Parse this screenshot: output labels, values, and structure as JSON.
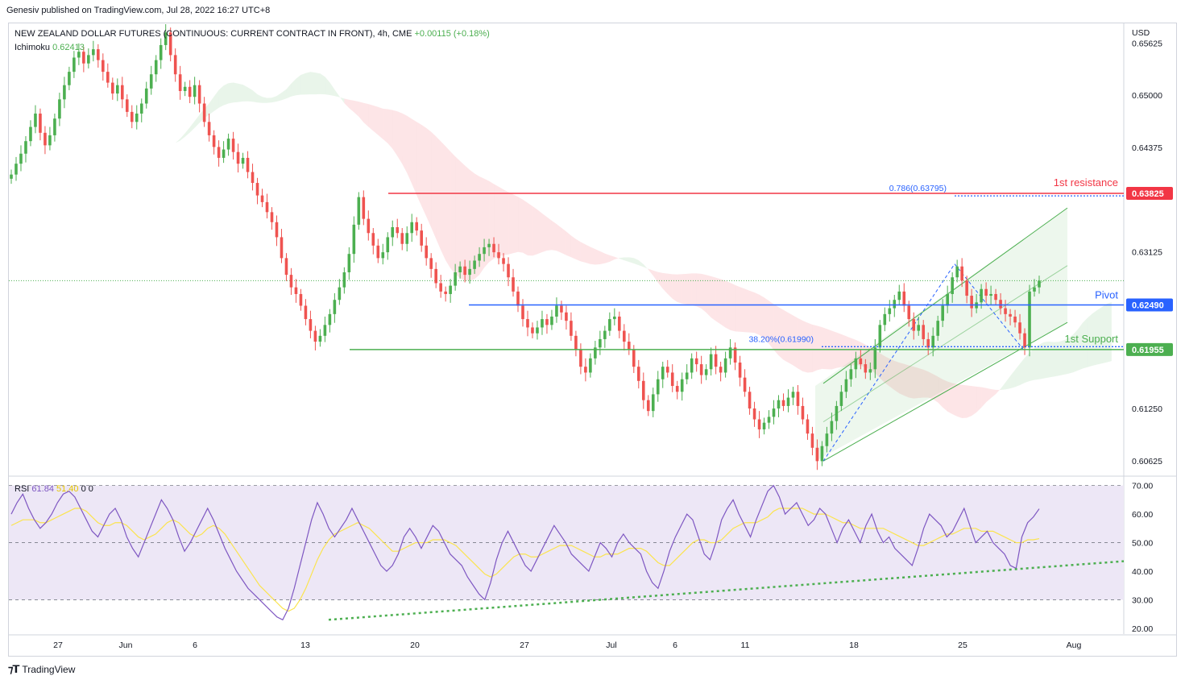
{
  "header": {
    "published": "Genesiv published on TradingView.com, Jul 28, 2022 16:27 UTC+8"
  },
  "instrument": {
    "title": "NEW ZEALAND DOLLAR FUTURES (CONTINUOUS: CURRENT CONTRACT IN FRONT), 4h, CME",
    "change": "+0.00115 (+0.18%)",
    "indicator_name": "Ichimoku",
    "indicator_value": "0.62413"
  },
  "rsi_legend": {
    "name": "RSI",
    "value": "61.84",
    "ma_value": "51.40",
    "extra1": "0",
    "extra2": "0"
  },
  "footer": {
    "brand": "TradingView"
  },
  "colors": {
    "bull": "#26a69a",
    "bull_candle": "#4caf50",
    "bear": "#ef5350",
    "resistance": "#f23645",
    "pivot": "#2962ff",
    "support": "#4caf50",
    "rsi_line": "#7e57c2",
    "rsi_ma": "#fbe44e",
    "rsi_band": "#ede7f6"
  },
  "chart_data": [
    {
      "type": "candlestick",
      "currency": "USD",
      "ylim": [
        0.6045,
        0.6585
      ],
      "price_ticks": [
        0.65625,
        0.65,
        0.64375,
        0.6375,
        0.63125,
        0.625,
        0.61875,
        0.6125,
        0.60625
      ],
      "price_tick_labels": [
        "0.65625",
        "0.65000",
        "0.64375",
        "",
        "0.63125",
        "",
        "",
        "0.61250",
        "0.60625"
      ],
      "x_labels": [
        "27",
        "Jun",
        "6",
        "13",
        "20",
        "27",
        "Jul",
        "6",
        "11",
        "18",
        "25",
        "Aug"
      ],
      "closes": [
        0.6405,
        0.6418,
        0.643,
        0.6445,
        0.6462,
        0.6478,
        0.6455,
        0.644,
        0.6452,
        0.6472,
        0.6495,
        0.6512,
        0.6528,
        0.6545,
        0.6552,
        0.6538,
        0.6548,
        0.6555,
        0.6542,
        0.6528,
        0.6515,
        0.6502,
        0.6512,
        0.6495,
        0.648,
        0.6468,
        0.6478,
        0.649,
        0.6508,
        0.6525,
        0.6542,
        0.656,
        0.6575,
        0.6548,
        0.6525,
        0.6505,
        0.651,
        0.6498,
        0.6512,
        0.649,
        0.6468,
        0.6452,
        0.6438,
        0.6425,
        0.6435,
        0.6448,
        0.6432,
        0.6418,
        0.6425,
        0.6408,
        0.6395,
        0.638,
        0.6372,
        0.636,
        0.6348,
        0.633,
        0.6305,
        0.6285,
        0.627,
        0.6262,
        0.6248,
        0.6232,
        0.6218,
        0.6205,
        0.6212,
        0.6225,
        0.6238,
        0.6255,
        0.627,
        0.6288,
        0.631,
        0.6345,
        0.6378,
        0.6352,
        0.6335,
        0.632,
        0.6305,
        0.6312,
        0.633,
        0.6342,
        0.6335,
        0.6322,
        0.6335,
        0.6348,
        0.6338,
        0.632,
        0.6305,
        0.6292,
        0.6275,
        0.6265,
        0.6262,
        0.6272,
        0.6288,
        0.6295,
        0.6285,
        0.6292,
        0.6302,
        0.631,
        0.6318,
        0.6322,
        0.6312,
        0.6305,
        0.6298,
        0.6282,
        0.6265,
        0.6248,
        0.6232,
        0.6222,
        0.6215,
        0.6222,
        0.6232,
        0.6225,
        0.6235,
        0.6248,
        0.624,
        0.623,
        0.6212,
        0.6195,
        0.6175,
        0.6168,
        0.6185,
        0.6198,
        0.6208,
        0.6218,
        0.6232,
        0.6235,
        0.6218,
        0.6205,
        0.6195,
        0.6175,
        0.6158,
        0.6135,
        0.6122,
        0.6142,
        0.616,
        0.6175,
        0.6168,
        0.6152,
        0.6145,
        0.616,
        0.6168,
        0.6185,
        0.6178,
        0.6165,
        0.6172,
        0.619,
        0.6175,
        0.6168,
        0.6185,
        0.6198,
        0.618,
        0.6162,
        0.6145,
        0.6125,
        0.6112,
        0.61,
        0.6108,
        0.6115,
        0.6125,
        0.6135,
        0.6128,
        0.6138,
        0.6145,
        0.6128,
        0.6112,
        0.6095,
        0.6078,
        0.6062,
        0.608,
        0.6095,
        0.611,
        0.6128,
        0.6145,
        0.616,
        0.6172,
        0.6185,
        0.6178,
        0.6168,
        0.6172,
        0.6198,
        0.6225,
        0.6238,
        0.6245,
        0.6255,
        0.6265,
        0.6248,
        0.6232,
        0.6218,
        0.6225,
        0.6208,
        0.6198,
        0.6212,
        0.623,
        0.6248,
        0.6262,
        0.6282,
        0.6295,
        0.6278,
        0.626,
        0.6245,
        0.6252,
        0.6268,
        0.626,
        0.6262,
        0.6255,
        0.6245,
        0.6238,
        0.6235,
        0.6228,
        0.6215,
        0.6198,
        0.6265,
        0.627,
        0.6278
      ],
      "levels": [
        {
          "name": "1st resistance",
          "price": 0.63825,
          "price_label": "0.63825"
        },
        {
          "name": "Pivot",
          "price": 0.6249,
          "price_label": "0.62490"
        },
        {
          "name": "1st Support",
          "price": 0.61955,
          "price_label": "0.61955"
        }
      ],
      "fib_labels": [
        {
          "text": "0.786(0.63795)",
          "price": 0.63795
        },
        {
          "text": "38.20%(0.61990)",
          "price": 0.6199
        }
      ]
    },
    {
      "type": "line",
      "name": "RSI",
      "ylim": [
        18,
        73
      ],
      "y_ticks": [
        70,
        60,
        50,
        40,
        30,
        20
      ],
      "y_tick_labels": [
        "70.00",
        "60.00",
        "50.00",
        "40.00",
        "30.00",
        "20.00"
      ],
      "band": [
        30,
        70
      ],
      "midline": 50,
      "values": [
        60,
        64,
        67,
        62,
        58,
        55,
        57,
        60,
        64,
        67,
        68,
        66,
        62,
        58,
        54,
        52,
        56,
        60,
        62,
        58,
        52,
        48,
        45,
        50,
        55,
        60,
        65,
        62,
        58,
        52,
        47,
        50,
        54,
        58,
        62,
        58,
        53,
        48,
        44,
        40,
        37,
        34,
        32,
        30,
        28,
        26,
        24,
        23,
        27,
        34,
        42,
        50,
        58,
        64,
        60,
        55,
        52,
        55,
        58,
        62,
        58,
        54,
        50,
        46,
        42,
        40,
        42,
        46,
        52,
        55,
        52,
        48,
        52,
        56,
        54,
        50,
        46,
        44,
        42,
        38,
        35,
        32,
        30,
        36,
        44,
        50,
        54,
        50,
        46,
        42,
        40,
        44,
        48,
        52,
        56,
        53,
        50,
        46,
        44,
        42,
        40,
        45,
        50,
        48,
        45,
        50,
        53,
        50,
        48,
        46,
        40,
        36,
        34,
        40,
        47,
        52,
        56,
        60,
        58,
        52,
        46,
        44,
        50,
        58,
        62,
        65,
        60,
        56,
        52,
        58,
        63,
        68,
        70,
        66,
        60,
        62,
        64,
        60,
        56,
        58,
        62,
        60,
        55,
        50,
        55,
        58,
        54,
        50,
        56,
        60,
        54,
        50,
        52,
        48,
        46,
        44,
        42,
        48,
        55,
        60,
        58,
        56,
        52,
        54,
        58,
        62,
        56,
        50,
        52,
        54,
        50,
        48,
        46,
        42,
        41,
        52,
        57,
        59,
        61.84
      ],
      "ma_values": [
        56,
        57,
        58,
        58,
        58,
        57,
        57,
        58,
        59,
        60,
        61,
        62,
        62,
        61,
        59,
        57,
        56,
        56,
        57,
        57,
        56,
        54,
        52,
        51,
        52,
        53,
        55,
        57,
        58,
        57,
        55,
        53,
        52,
        53,
        55,
        56,
        55,
        53,
        50,
        47,
        44,
        41,
        38,
        35,
        33,
        31,
        29,
        27,
        26,
        27,
        30,
        34,
        39,
        44,
        48,
        51,
        53,
        54,
        55,
        56,
        57,
        56,
        55,
        53,
        51,
        49,
        47,
        47,
        48,
        49,
        50,
        50,
        50,
        51,
        51,
        51,
        50,
        49,
        47,
        45,
        43,
        41,
        39,
        38,
        39,
        41,
        43,
        45,
        46,
        46,
        45,
        45,
        46,
        47,
        48,
        49,
        49,
        49,
        48,
        47,
        46,
        45,
        45,
        46,
        46,
        46,
        47,
        48,
        48,
        48,
        47,
        45,
        43,
        42,
        42,
        44,
        46,
        48,
        50,
        51,
        51,
        50,
        50,
        51,
        53,
        55,
        56,
        57,
        57,
        57,
        58,
        59,
        61,
        62,
        62,
        62,
        62,
        62,
        61,
        60,
        60,
        60,
        59,
        58,
        57,
        57,
        56,
        55,
        55,
        55,
        55,
        55,
        54,
        53,
        52,
        51,
        50,
        49,
        49,
        50,
        51,
        52,
        53,
        53,
        54,
        55,
        55,
        55,
        54,
        54,
        54,
        53,
        52,
        51,
        50,
        50,
        51,
        51,
        51.4
      ]
    }
  ]
}
